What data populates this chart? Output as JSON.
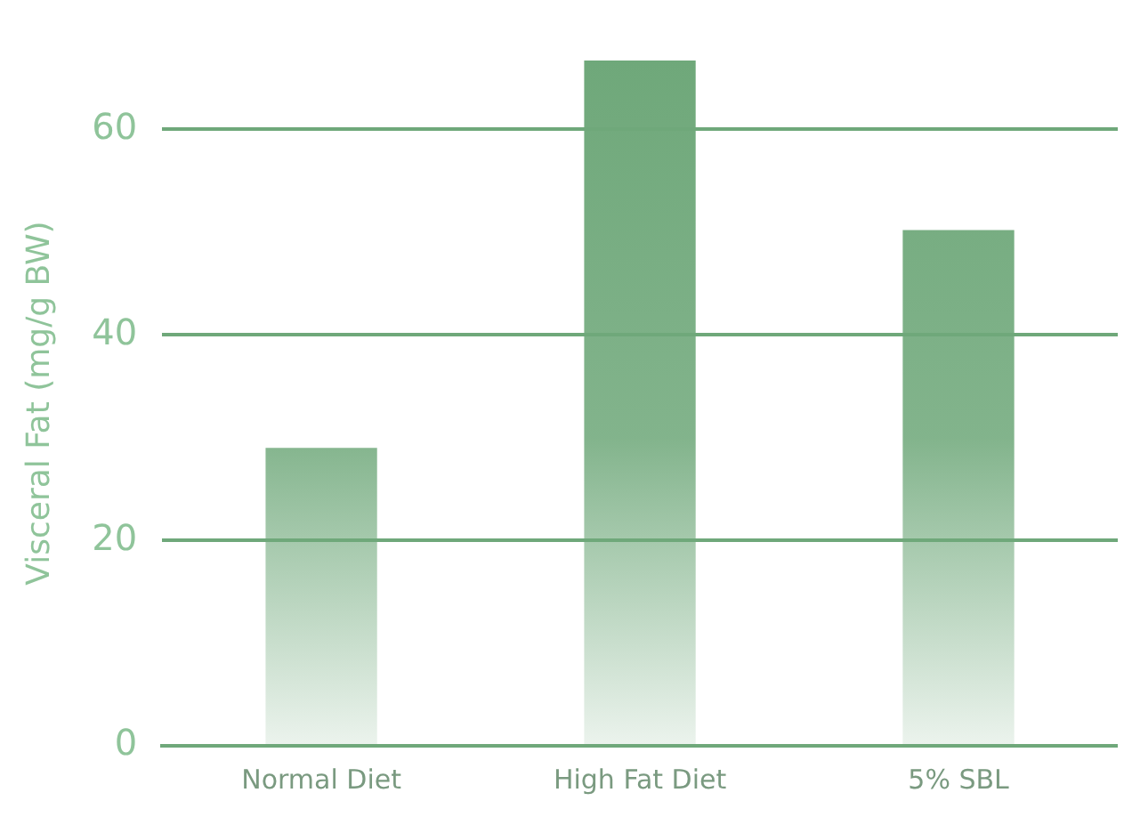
{
  "chart_data": {
    "type": "bar",
    "ylabel": "Visceral Fat (mg/g BW)",
    "categories": [
      "Normal Diet",
      "High Fat Diet",
      "5% SBL"
    ],
    "values": [
      29,
      66.7,
      50.2
    ],
    "color": "#6fa87a",
    "ylim": [
      0,
      66.7
    ],
    "yticks": [
      0,
      20,
      40,
      60
    ],
    "grid": "y",
    "legend": false
  }
}
